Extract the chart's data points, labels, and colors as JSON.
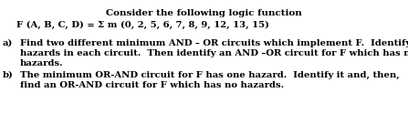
{
  "title": "Consider the following logic function",
  "line2": "F (A, B, C, D) = Σ m (0, 2, 5, 6, 7, 8, 9, 12, 13, 15)",
  "part_a_label": "a)",
  "part_a_text1": "Find two different minimum AND – OR circuits which implement F.  Identify two",
  "part_a_text2": "hazards in each circuit.  Then identify an AND –OR circuit for F which has no",
  "part_a_text3": "hazards.",
  "part_b_label": "b)",
  "part_b_text1": "The minimum OR-AND circuit for F has one hazard.  Identify it and, then,",
  "part_b_text2": "find an OR-AND circuit for F which has no hazards.",
  "bg_color": "#ffffff",
  "text_color": "#000000",
  "font_size_title": 7.5,
  "font_size_body": 7.2,
  "font_family": "DejaVu Serif",
  "fig_width": 4.47,
  "fig_height": 1.36,
  "dpi": 100
}
